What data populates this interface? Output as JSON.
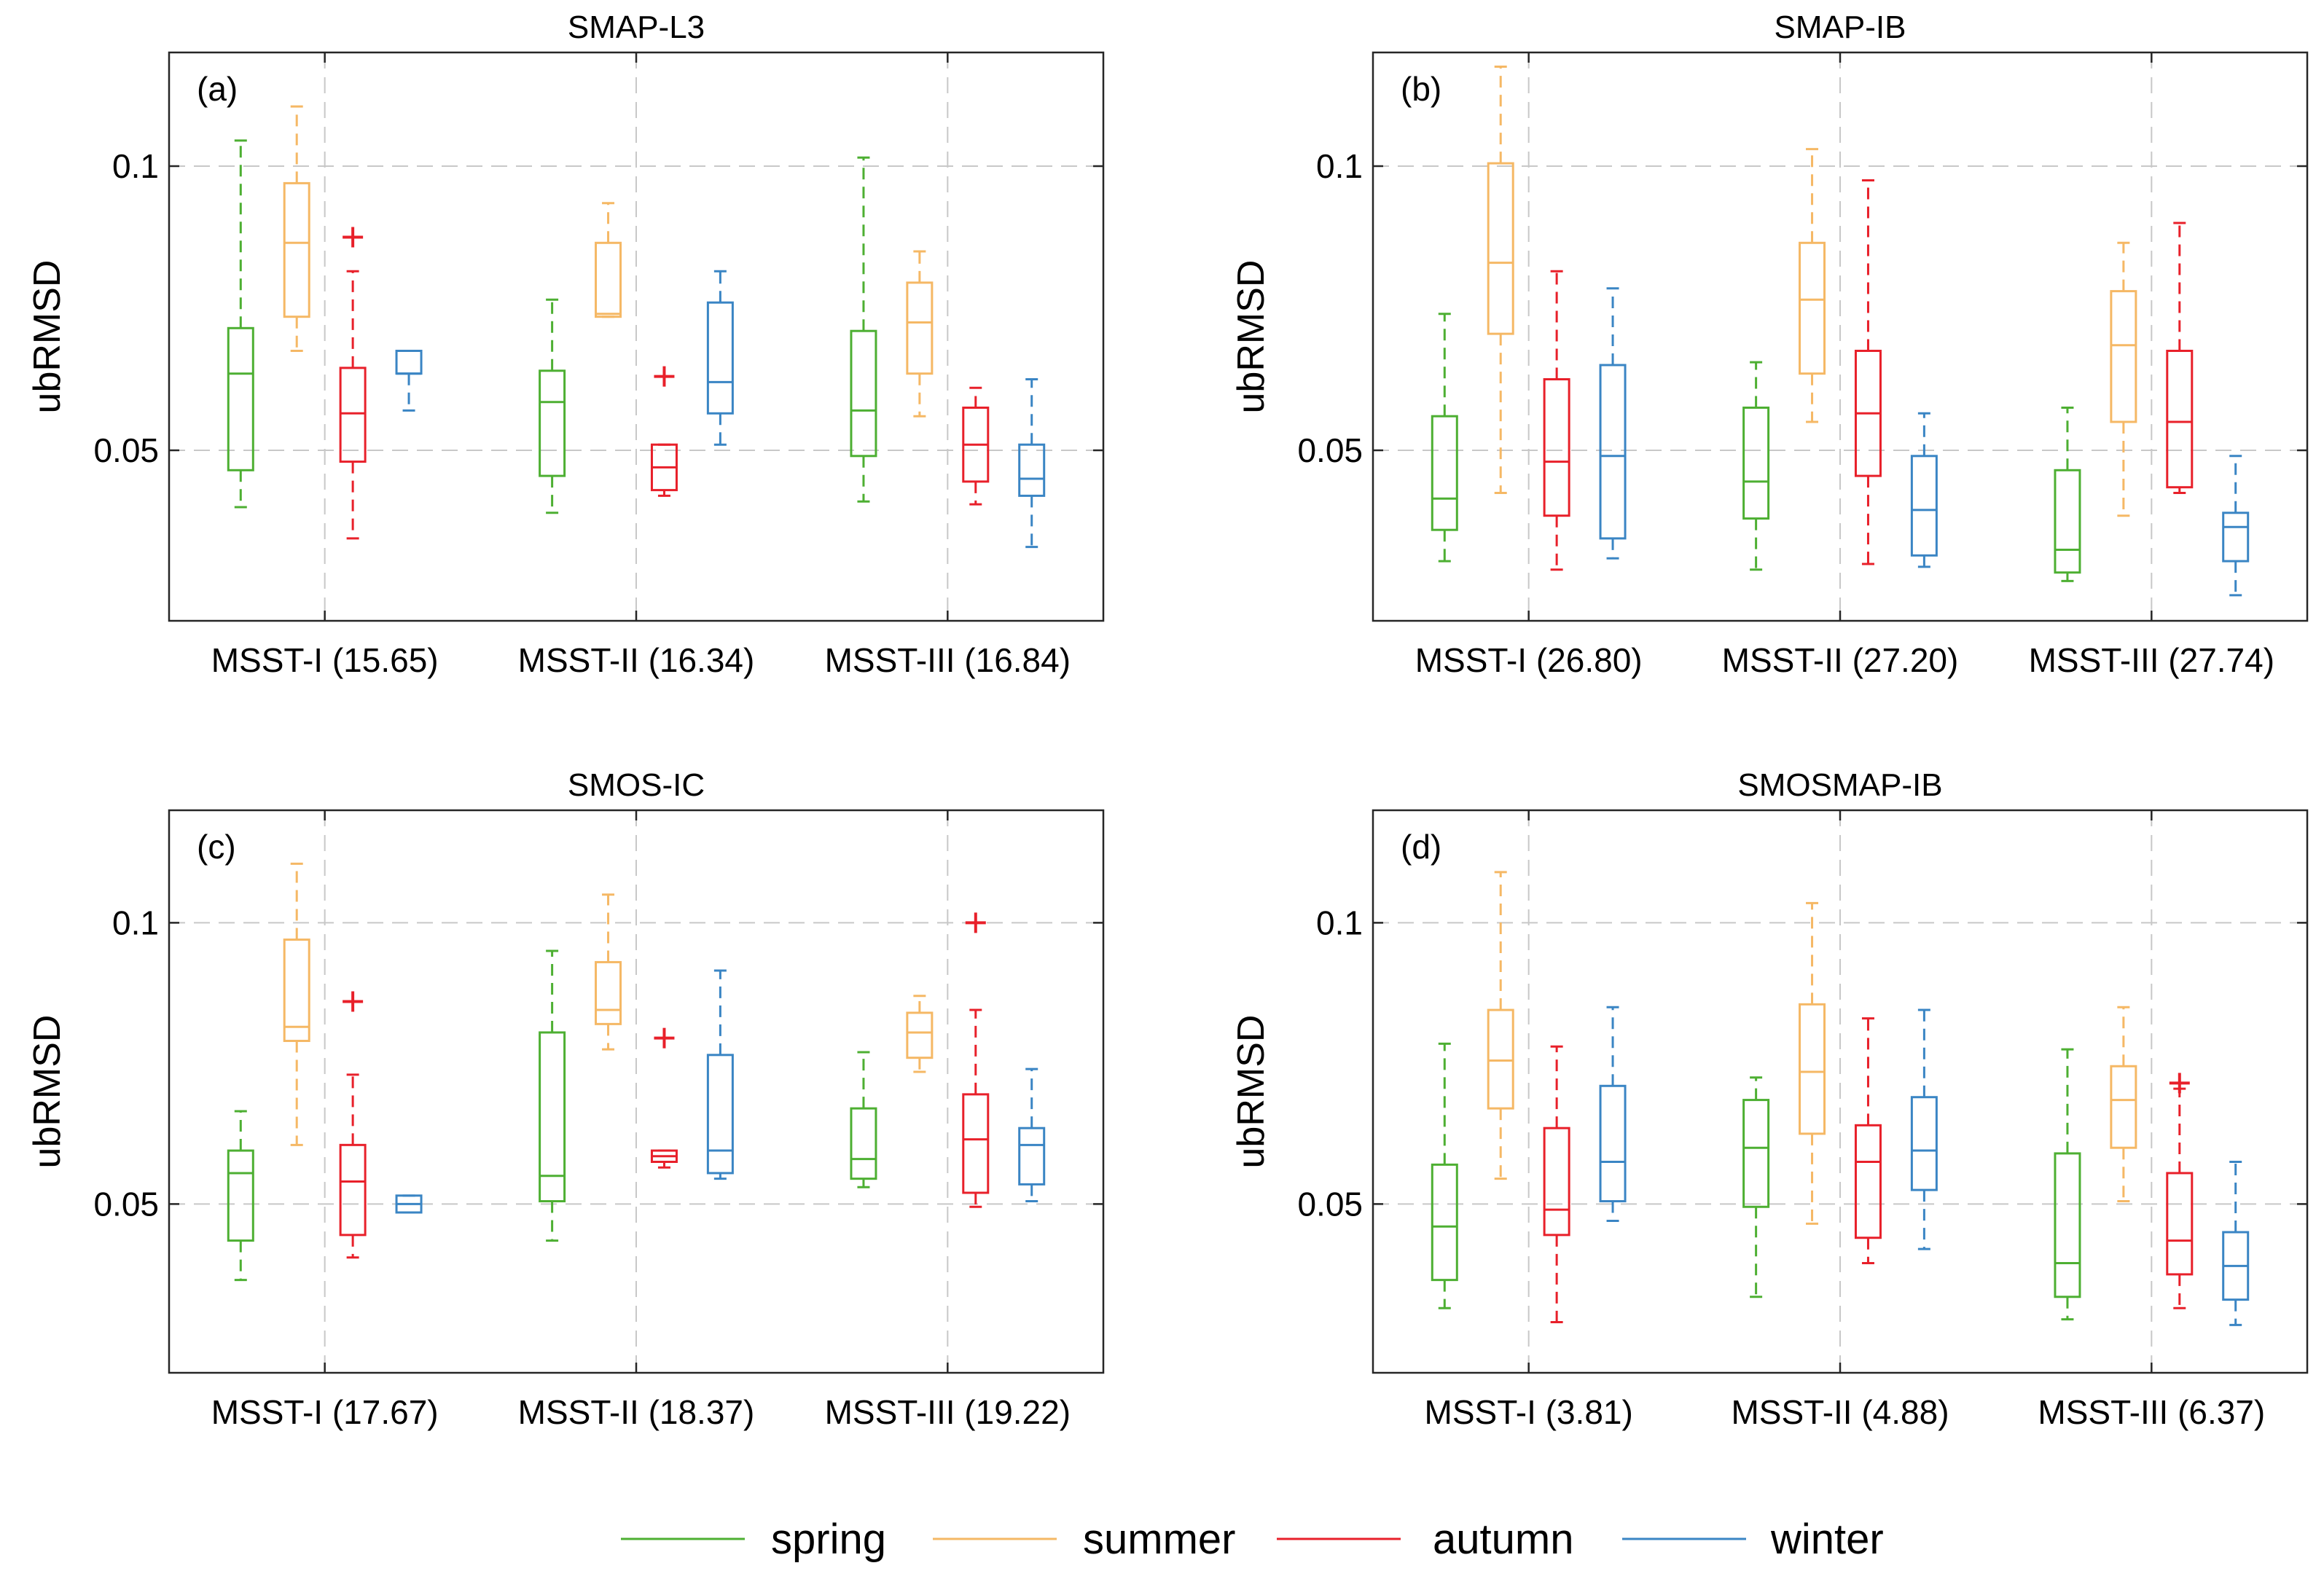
{
  "legend": {
    "spring": "spring",
    "summer": "summer",
    "autumn": "autumn",
    "winter": "winter"
  },
  "chart_data": [
    {
      "type": "box",
      "title": "SMAP-L3",
      "panel_label": "(a)",
      "ylabel": "ubRMSD",
      "ylim": [
        0.02,
        0.12
      ],
      "yticks": [
        0.05,
        0.1
      ],
      "ytick_labels": [
        "0.05",
        "0.1"
      ],
      "categories": [
        "MSST-I (15.65)",
        "MSST-II (16.34)",
        "MSST-III (16.84)"
      ],
      "series": [
        {
          "name": "spring",
          "color": "#4daf32",
          "boxes": [
            {
              "min": 0.04,
              "q1": 0.0465,
              "median": 0.0635,
              "q3": 0.0715,
              "max": 0.1045,
              "outliers": []
            },
            {
              "min": 0.039,
              "q1": 0.0455,
              "median": 0.0585,
              "q3": 0.064,
              "max": 0.0765,
              "outliers": []
            },
            {
              "min": 0.041,
              "q1": 0.049,
              "median": 0.057,
              "q3": 0.071,
              "max": 0.1015,
              "outliers": []
            }
          ]
        },
        {
          "name": "summer",
          "color": "#f5b865",
          "boxes": [
            {
              "min": 0.0675,
              "q1": 0.0735,
              "median": 0.0865,
              "q3": 0.097,
              "max": 0.1105,
              "outliers": []
            },
            {
              "min": 0.0735,
              "q1": 0.0735,
              "median": 0.074,
              "q3": 0.0865,
              "max": 0.0935,
              "outliers": []
            },
            {
              "min": 0.056,
              "q1": 0.0635,
              "median": 0.0725,
              "q3": 0.0795,
              "max": 0.085,
              "outliers": []
            }
          ]
        },
        {
          "name": "autumn",
          "color": "#e8202a",
          "boxes": [
            {
              "min": 0.0345,
              "q1": 0.048,
              "median": 0.0565,
              "q3": 0.0645,
              "max": 0.0815,
              "outliers": [
                0.0875
              ]
            },
            {
              "min": 0.042,
              "q1": 0.043,
              "median": 0.047,
              "q3": 0.051,
              "max": 0.051,
              "outliers": [
                0.063
              ]
            },
            {
              "min": 0.0405,
              "q1": 0.0445,
              "median": 0.051,
              "q3": 0.0575,
              "max": 0.061,
              "outliers": []
            }
          ]
        },
        {
          "name": "winter",
          "color": "#3a85c4",
          "boxes": [
            {
              "min": 0.057,
              "q1": 0.0635,
              "median": 0.0635,
              "q3": 0.0675,
              "max": 0.0675,
              "outliers": []
            },
            {
              "min": 0.051,
              "q1": 0.0565,
              "median": 0.062,
              "q3": 0.076,
              "max": 0.0815,
              "outliers": []
            },
            {
              "min": 0.033,
              "q1": 0.042,
              "median": 0.045,
              "q3": 0.051,
              "max": 0.0625,
              "outliers": []
            }
          ]
        }
      ]
    },
    {
      "type": "box",
      "title": "SMAP-IB",
      "panel_label": "(b)",
      "ylabel": "ubRMSD",
      "ylim": [
        0.02,
        0.12
      ],
      "yticks": [
        0.05,
        0.1
      ],
      "ytick_labels": [
        "0.05",
        "0.1"
      ],
      "categories": [
        "MSST-I (26.80)",
        "MSST-II (27.20)",
        "MSST-III (27.74)"
      ],
      "series": [
        {
          "name": "spring",
          "color": "#4daf32",
          "boxes": [
            {
              "min": 0.0305,
              "q1": 0.036,
              "median": 0.0415,
              "q3": 0.056,
              "max": 0.074,
              "outliers": []
            },
            {
              "min": 0.029,
              "q1": 0.038,
              "median": 0.0445,
              "q3": 0.0575,
              "max": 0.0655,
              "outliers": []
            },
            {
              "min": 0.027,
              "q1": 0.0285,
              "median": 0.0325,
              "q3": 0.0465,
              "max": 0.0575,
              "outliers": []
            }
          ]
        },
        {
          "name": "summer",
          "color": "#f5b865",
          "boxes": [
            {
              "min": 0.0425,
              "q1": 0.0705,
              "median": 0.083,
              "q3": 0.1005,
              "max": 0.1175,
              "outliers": []
            },
            {
              "min": 0.055,
              "q1": 0.0635,
              "median": 0.0765,
              "q3": 0.0865,
              "max": 0.103,
              "outliers": []
            },
            {
              "min": 0.0385,
              "q1": 0.055,
              "median": 0.0685,
              "q3": 0.078,
              "max": 0.0865,
              "outliers": []
            }
          ]
        },
        {
          "name": "autumn",
          "color": "#e8202a",
          "boxes": [
            {
              "min": 0.029,
              "q1": 0.0385,
              "median": 0.048,
              "q3": 0.0625,
              "max": 0.0815,
              "outliers": []
            },
            {
              "min": 0.03,
              "q1": 0.0455,
              "median": 0.0565,
              "q3": 0.0675,
              "max": 0.0975,
              "outliers": []
            },
            {
              "min": 0.0425,
              "q1": 0.0435,
              "median": 0.055,
              "q3": 0.0675,
              "max": 0.09,
              "outliers": []
            }
          ]
        },
        {
          "name": "winter",
          "color": "#3a85c4",
          "boxes": [
            {
              "min": 0.031,
              "q1": 0.0345,
              "median": 0.049,
              "q3": 0.065,
              "max": 0.0785,
              "outliers": []
            },
            {
              "min": 0.0295,
              "q1": 0.0315,
              "median": 0.0395,
              "q3": 0.049,
              "max": 0.0565,
              "outliers": []
            },
            {
              "min": 0.0245,
              "q1": 0.0305,
              "median": 0.0365,
              "q3": 0.039,
              "max": 0.049,
              "outliers": []
            }
          ]
        }
      ]
    },
    {
      "type": "box",
      "title": "SMOS-IC",
      "panel_label": "(c)",
      "ylabel": "ubRMSD",
      "ylim": [
        0.02,
        0.12
      ],
      "yticks": [
        0.05,
        0.1
      ],
      "ytick_labels": [
        "0.05",
        "0.1"
      ],
      "categories": [
        "MSST-I (17.67)",
        "MSST-II (18.37)",
        "MSST-III (19.22)"
      ],
      "series": [
        {
          "name": "spring",
          "color": "#4daf32",
          "boxes": [
            {
              "min": 0.0365,
              "q1": 0.0435,
              "median": 0.0555,
              "q3": 0.0595,
              "max": 0.0665,
              "outliers": []
            },
            {
              "min": 0.0435,
              "q1": 0.0505,
              "median": 0.055,
              "q3": 0.0805,
              "max": 0.095,
              "outliers": []
            },
            {
              "min": 0.053,
              "q1": 0.0545,
              "median": 0.058,
              "q3": 0.067,
              "max": 0.077,
              "outliers": []
            }
          ]
        },
        {
          "name": "summer",
          "color": "#f5b865",
          "boxes": [
            {
              "min": 0.0605,
              "q1": 0.079,
              "median": 0.0815,
              "q3": 0.097,
              "max": 0.1105,
              "outliers": []
            },
            {
              "min": 0.0775,
              "q1": 0.082,
              "median": 0.0845,
              "q3": 0.093,
              "max": 0.105,
              "outliers": []
            },
            {
              "min": 0.0735,
              "q1": 0.076,
              "median": 0.0805,
              "q3": 0.084,
              "max": 0.087,
              "outliers": []
            }
          ]
        },
        {
          "name": "autumn",
          "color": "#e8202a",
          "boxes": [
            {
              "min": 0.0405,
              "q1": 0.0445,
              "median": 0.054,
              "q3": 0.0605,
              "max": 0.073,
              "outliers": [
                0.086
              ]
            },
            {
              "min": 0.0565,
              "q1": 0.0575,
              "median": 0.0585,
              "q3": 0.0595,
              "max": 0.0595,
              "outliers": [
                0.0795
              ]
            },
            {
              "min": 0.0495,
              "q1": 0.052,
              "median": 0.0615,
              "q3": 0.0695,
              "max": 0.0845,
              "outliers": [
                0.1
              ]
            }
          ]
        },
        {
          "name": "winter",
          "color": "#3a85c4",
          "boxes": [
            {
              "min": 0.0485,
              "q1": 0.0485,
              "median": 0.05,
              "q3": 0.0515,
              "max": 0.0515,
              "outliers": []
            },
            {
              "min": 0.0545,
              "q1": 0.0555,
              "median": 0.0595,
              "q3": 0.0765,
              "max": 0.0915,
              "outliers": []
            },
            {
              "min": 0.0505,
              "q1": 0.0535,
              "median": 0.0605,
              "q3": 0.0635,
              "max": 0.074,
              "outliers": []
            }
          ]
        }
      ]
    },
    {
      "type": "box",
      "title": "SMOSMAP-IB",
      "panel_label": "(d)",
      "ylabel": "ubRMSD",
      "ylim": [
        0.02,
        0.12
      ],
      "yticks": [
        0.05,
        0.1
      ],
      "ytick_labels": [
        "0.05",
        "0.1"
      ],
      "categories": [
        "MSST-I (3.81)",
        "MSST-II (4.88)",
        "MSST-III (6.37)"
      ],
      "series": [
        {
          "name": "spring",
          "color": "#4daf32",
          "boxes": [
            {
              "min": 0.0315,
              "q1": 0.0365,
              "median": 0.046,
              "q3": 0.057,
              "max": 0.0785,
              "outliers": []
            },
            {
              "min": 0.0335,
              "q1": 0.0495,
              "median": 0.06,
              "q3": 0.0685,
              "max": 0.0725,
              "outliers": []
            },
            {
              "min": 0.0295,
              "q1": 0.0335,
              "median": 0.0395,
              "q3": 0.059,
              "max": 0.0775,
              "outliers": []
            }
          ]
        },
        {
          "name": "summer",
          "color": "#f5b865",
          "boxes": [
            {
              "min": 0.0545,
              "q1": 0.067,
              "median": 0.0755,
              "q3": 0.0845,
              "max": 0.109,
              "outliers": []
            },
            {
              "min": 0.0465,
              "q1": 0.0625,
              "median": 0.0735,
              "q3": 0.0855,
              "max": 0.1035,
              "outliers": []
            },
            {
              "min": 0.0505,
              "q1": 0.06,
              "median": 0.0685,
              "q3": 0.0745,
              "max": 0.085,
              "outliers": []
            }
          ]
        },
        {
          "name": "autumn",
          "color": "#e8202a",
          "boxes": [
            {
              "min": 0.029,
              "q1": 0.0445,
              "median": 0.049,
              "q3": 0.0635,
              "max": 0.078,
              "outliers": []
            },
            {
              "min": 0.0395,
              "q1": 0.044,
              "median": 0.0575,
              "q3": 0.064,
              "max": 0.083,
              "outliers": []
            },
            {
              "min": 0.0315,
              "q1": 0.0375,
              "median": 0.0435,
              "q3": 0.0555,
              "max": 0.0705,
              "outliers": [
                0.0715
              ]
            }
          ]
        },
        {
          "name": "winter",
          "color": "#3a85c4",
          "boxes": [
            {
              "min": 0.047,
              "q1": 0.0505,
              "median": 0.0575,
              "q3": 0.071,
              "max": 0.085,
              "outliers": []
            },
            {
              "min": 0.042,
              "q1": 0.0525,
              "median": 0.0595,
              "q3": 0.069,
              "max": 0.0845,
              "outliers": []
            },
            {
              "min": 0.0285,
              "q1": 0.033,
              "median": 0.039,
              "q3": 0.045,
              "max": 0.0575,
              "outliers": []
            }
          ]
        }
      ]
    }
  ]
}
